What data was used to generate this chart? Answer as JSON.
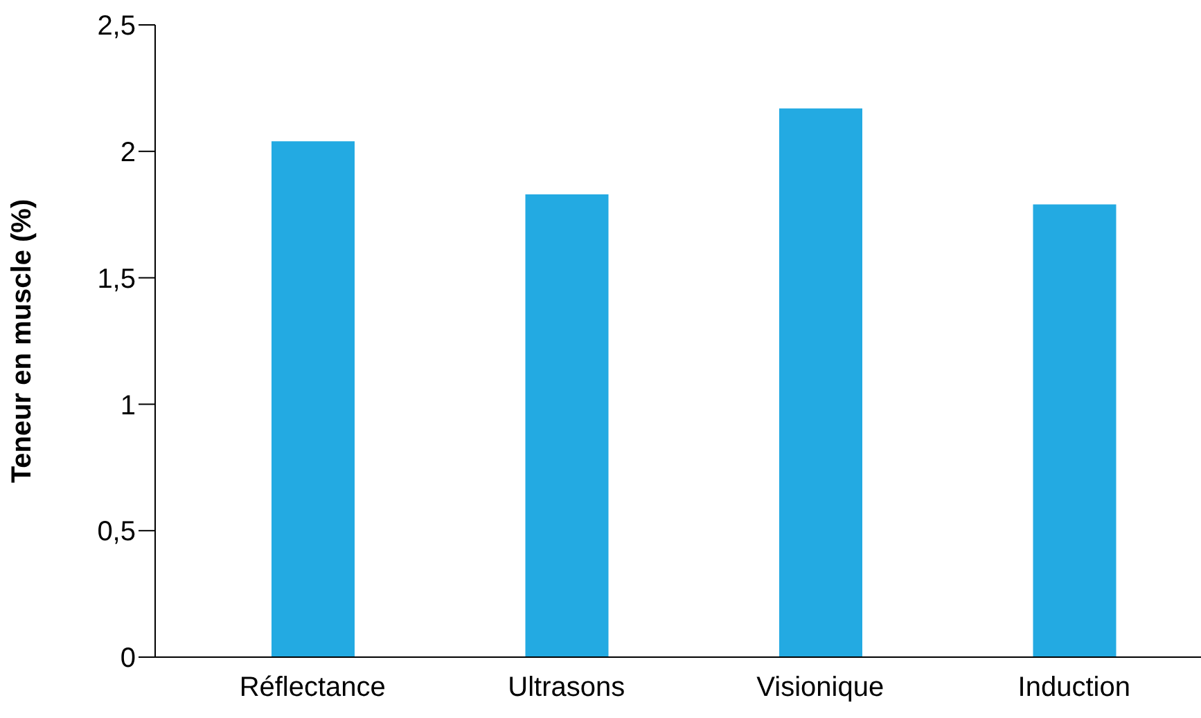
{
  "chart_data": {
    "type": "bar",
    "ylabel": "Teneur en muscle (%)",
    "categories": [
      "Réflectance",
      "Ultrasons",
      "Visionique",
      "Induction"
    ],
    "values": [
      2.04,
      1.83,
      2.17,
      1.79
    ],
    "color": "#23aae2",
    "ylim": [
      0,
      2.5
    ],
    "yticks": [
      0,
      {
        "value": 0.5,
        "label": "0,5"
      },
      1,
      {
        "value": 1.5,
        "label": "1,5"
      },
      2,
      {
        "value": 2.5,
        "label": "2,5"
      }
    ]
  }
}
